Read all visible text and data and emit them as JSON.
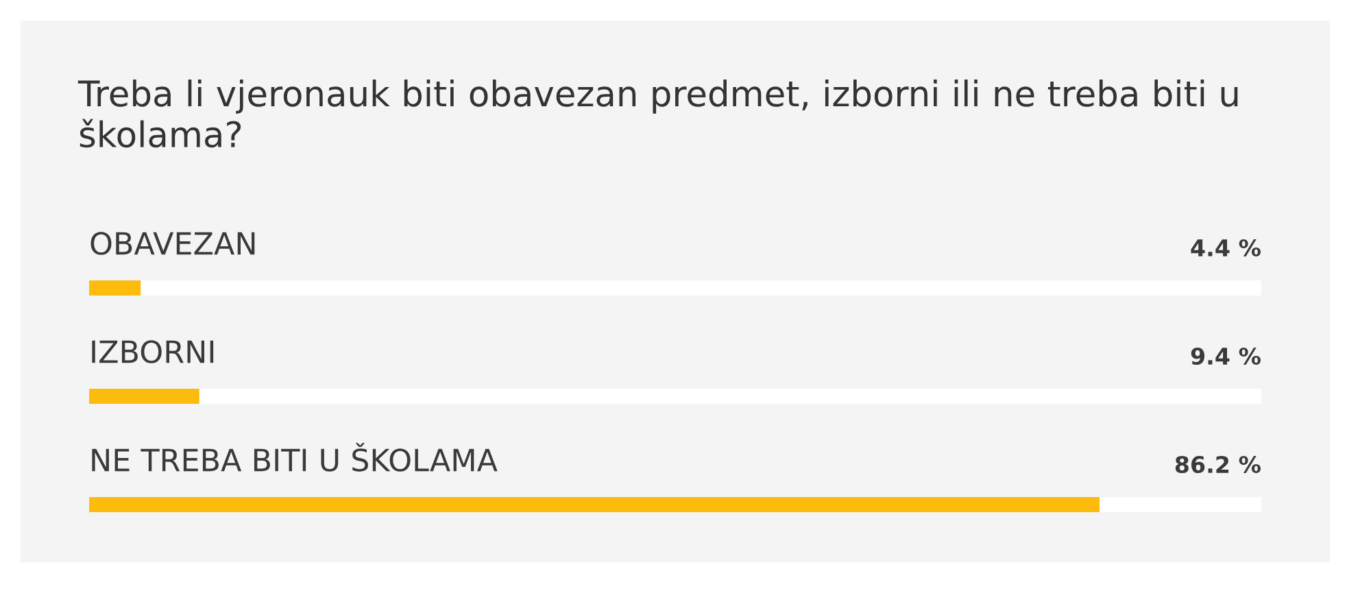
{
  "chart_data": {
    "type": "bar",
    "orientation": "horizontal",
    "title": "Treba li vjeronauk biti obavezan predmet, izborni ili ne treba biti u školama?",
    "categories": [
      "OBAVEZAN",
      "IZBORNI",
      "NE TREBA BITI U ŠKOLAMA"
    ],
    "values": [
      4.4,
      9.4,
      86.2
    ],
    "value_labels": [
      "4.4 %",
      "9.4 %",
      "86.2 %"
    ],
    "color": "#fcbb0d",
    "xlim": [
      0,
      100
    ],
    "tick_labels": false
  }
}
